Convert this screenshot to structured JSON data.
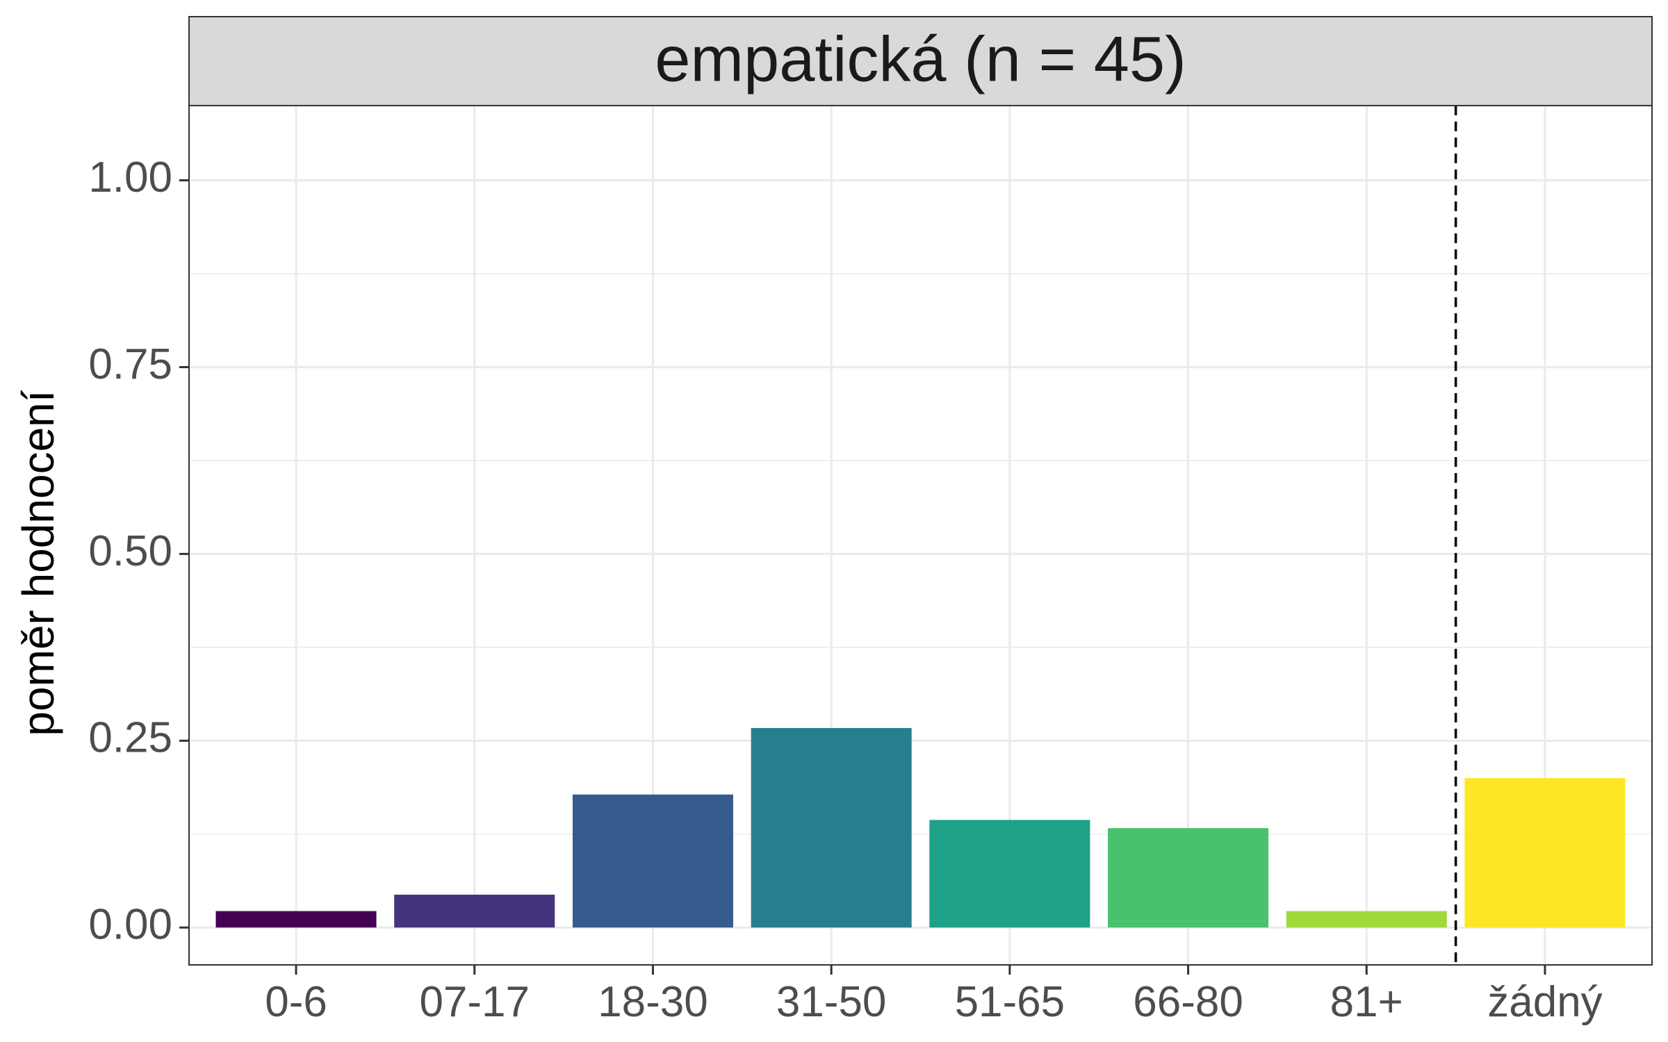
{
  "chart_data": {
    "type": "bar",
    "title": "",
    "facet_label": "empatická (n = 45)",
    "xlabel": "",
    "ylabel": "poměr hodnocení",
    "categories": [
      "0-6",
      "07-17",
      "18-30",
      "31-50",
      "51-65",
      "66-80",
      "81+",
      "žádný"
    ],
    "values": [
      0.022,
      0.044,
      0.178,
      0.267,
      0.144,
      0.133,
      0.022,
      0.2
    ],
    "colors": [
      "#440154",
      "#46337E",
      "#365C8D",
      "#277F8E",
      "#1FA187",
      "#4AC16D",
      "#9FDA3A",
      "#FDE725"
    ],
    "ylim": [
      -0.05,
      1.1
    ],
    "yticks": [
      "0.00",
      "0.25",
      "0.50",
      "0.75",
      "1.00"
    ],
    "grid": true,
    "legend": "none",
    "reference_line": {
      "between": [
        "81+",
        "žádný"
      ],
      "style": "dashed"
    }
  }
}
